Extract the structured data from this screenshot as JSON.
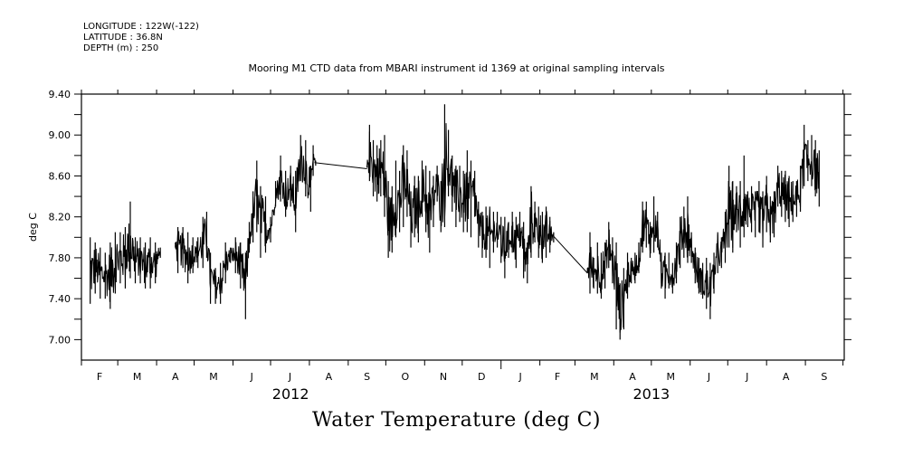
{
  "header": {
    "longitude": "LONGITUDE : 122W(-122)",
    "latitude": "LATITUDE : 36.8N",
    "depth": "DEPTH (m) : 250",
    "plot_title": "Mooring M1 CTD data from MBARI instrument id 1369 at original sampling intervals",
    "variable_title": "Water Temperature (deg C)"
  },
  "chart_data": {
    "type": "line",
    "title": "Mooring M1 CTD data from MBARI instrument id 1369 at original sampling intervals",
    "subtitle": "Water Temperature (deg C)",
    "xlabel": "",
    "ylabel": "deg C",
    "ylim": [
      6.8,
      9.4
    ],
    "yticks": [
      "7.00",
      "7.40",
      "7.80",
      "8.20",
      "8.60",
      "9.00",
      "9.40"
    ],
    "ytick_values": [
      7.0,
      7.4,
      7.8,
      8.2,
      8.6,
      9.0,
      9.4
    ],
    "yminor_step": 0.2,
    "xlim_days": [
      0,
      609
    ],
    "x_origin": "2012-02-01",
    "x_unit": "days since 2012-02-01",
    "month_ticks_days": [
      0,
      29,
      60,
      90,
      121,
      151,
      182,
      213,
      243,
      274,
      304,
      335,
      366,
      394,
      425,
      455,
      486,
      516,
      547,
      578,
      608
    ],
    "month_labels": [
      "F",
      "M",
      "A",
      "M",
      "J",
      "J",
      "A",
      "S",
      "O",
      "N",
      "D",
      "J",
      "F",
      "M",
      "A",
      "M",
      "J",
      "J",
      "A",
      "S"
    ],
    "year_labels": [
      {
        "label": "2012",
        "at_day": 167
      },
      {
        "label": "2013",
        "at_day": 455
      }
    ],
    "year_boundary_day": 335,
    "grid": false,
    "legend": "none",
    "series": [
      {
        "name": "Water Temperature",
        "segments": [
          {
            "points": [
              [
                7,
                7.35,
                8.0
              ],
              [
                11,
                7.45,
                7.95
              ],
              [
                15,
                7.4,
                7.9
              ],
              [
                19,
                7.4,
                7.85
              ],
              [
                23,
                7.3,
                7.95
              ],
              [
                27,
                7.45,
                8.05
              ],
              [
                31,
                7.55,
                8.05
              ],
              [
                35,
                7.5,
                8.1
              ],
              [
                39,
                7.6,
                8.35
              ],
              [
                43,
                7.55,
                8.0
              ],
              [
                47,
                7.55,
                8.0
              ],
              [
                51,
                7.5,
                7.95
              ],
              [
                55,
                7.5,
                8.0
              ],
              [
                59,
                7.55,
                7.95
              ],
              [
                63,
                7.8,
                7.9
              ]
            ]
          },
          {
            "points": [
              [
                75,
                7.9,
                7.95
              ],
              [
                77,
                7.65,
                8.1
              ],
              [
                81,
                7.7,
                8.1
              ],
              [
                85,
                7.55,
                8.05
              ],
              [
                89,
                7.65,
                8.0
              ],
              [
                93,
                7.7,
                8.0
              ],
              [
                97,
                7.7,
                8.2
              ],
              [
                100,
                7.8,
                8.25
              ],
              [
                103,
                7.35,
                7.85
              ],
              [
                107,
                7.35,
                7.7
              ],
              [
                111,
                7.35,
                7.75
              ],
              [
                115,
                7.55,
                7.95
              ],
              [
                119,
                7.75,
                7.9
              ],
              [
                123,
                7.65,
                8.0
              ],
              [
                127,
                7.5,
                7.95
              ],
              [
                131,
                7.2,
                7.85
              ],
              [
                134,
                7.85,
                8.15
              ],
              [
                137,
                7.95,
                8.45
              ],
              [
                140,
                8.05,
                8.75
              ],
              [
                143,
                7.8,
                8.5
              ],
              [
                147,
                7.85,
                8.4
              ],
              [
                151,
                7.95,
                8.2
              ],
              [
                155,
                8.3,
                8.55
              ],
              [
                159,
                8.35,
                8.8
              ],
              [
                163,
                8.2,
                8.65
              ],
              [
                167,
                8.3,
                8.7
              ],
              [
                171,
                8.05,
                8.65
              ],
              [
                175,
                8.55,
                9.0
              ],
              [
                179,
                8.4,
                8.95
              ],
              [
                183,
                8.25,
                8.7
              ],
              [
                185,
                8.6,
                8.9
              ],
              [
                187,
                8.7,
                8.75
              ]
            ]
          },
          {
            "points": [
              [
                186,
                8.72,
                8.74
              ],
              [
                228,
                8.66,
                8.68
              ]
            ]
          },
          {
            "points": [
              [
                228,
                8.68,
                8.7
              ],
              [
                230,
                8.55,
                9.1
              ],
              [
                233,
                8.4,
                8.95
              ],
              [
                236,
                8.35,
                8.9
              ],
              [
                239,
                8.4,
                8.95
              ],
              [
                242,
                8.2,
                9.0
              ],
              [
                245,
                7.8,
                8.55
              ],
              [
                248,
                7.85,
                8.5
              ],
              [
                251,
                8.0,
                8.75
              ],
              [
                254,
                8.05,
                8.65
              ],
              [
                257,
                8.1,
                8.9
              ],
              [
                260,
                8.2,
                8.85
              ],
              [
                263,
                7.9,
                8.45
              ],
              [
                266,
                8.0,
                8.6
              ],
              [
                269,
                7.95,
                8.6
              ],
              [
                272,
                8.2,
                8.75
              ],
              [
                275,
                8.05,
                8.7
              ],
              [
                278,
                7.85,
                8.65
              ],
              [
                281,
                8.1,
                8.6
              ],
              [
                284,
                8.35,
                8.7
              ],
              [
                287,
                8.05,
                8.55
              ],
              [
                290,
                8.1,
                9.3
              ],
              [
                293,
                8.4,
                9.05
              ],
              [
                296,
                8.25,
                8.8
              ],
              [
                299,
                8.1,
                8.7
              ],
              [
                302,
                8.15,
                8.7
              ],
              [
                305,
                8.05,
                8.65
              ],
              [
                308,
                8.05,
                8.85
              ],
              [
                311,
                8.0,
                8.75
              ],
              [
                314,
                8.2,
                8.65
              ],
              [
                317,
                7.9,
                8.35
              ],
              [
                320,
                7.8,
                8.25
              ],
              [
                323,
                7.8,
                8.3
              ],
              [
                326,
                7.7,
                8.3
              ],
              [
                329,
                7.85,
                8.25
              ],
              [
                332,
                7.9,
                8.25
              ],
              [
                335,
                7.75,
                8.2
              ],
              [
                338,
                7.6,
                8.2
              ],
              [
                341,
                7.8,
                8.15
              ],
              [
                344,
                7.85,
                8.25
              ],
              [
                347,
                7.7,
                8.2
              ],
              [
                350,
                7.9,
                8.25
              ],
              [
                353,
                7.6,
                8.15
              ],
              [
                356,
                7.55,
                7.95
              ],
              [
                359,
                7.8,
                8.5
              ],
              [
                362,
                7.95,
                8.35
              ],
              [
                365,
                7.8,
                8.3
              ],
              [
                368,
                7.75,
                8.25
              ],
              [
                371,
                7.8,
                8.3
              ],
              [
                374,
                7.85,
                8.2
              ],
              [
                377,
                7.95,
                8.05
              ]
            ]
          },
          {
            "points": [
              [
                377,
                8.0,
                8.02
              ],
              [
                404,
                7.64,
                7.66
              ]
            ]
          },
          {
            "points": [
              [
                404,
                7.65,
                7.7
              ],
              [
                406,
                7.45,
                8.05
              ],
              [
                409,
                7.5,
                7.8
              ],
              [
                412,
                7.45,
                7.95
              ],
              [
                415,
                7.4,
                7.85
              ],
              [
                418,
                7.5,
                7.95
              ],
              [
                421,
                7.7,
                8.15
              ],
              [
                424,
                7.55,
                8.0
              ],
              [
                427,
                7.1,
                7.95
              ],
              [
                430,
                7.0,
                7.55
              ],
              [
                433,
                7.1,
                7.7
              ],
              [
                436,
                7.4,
                7.85
              ],
              [
                439,
                7.55,
                7.8
              ],
              [
                442,
                7.55,
                7.85
              ],
              [
                445,
                7.65,
                7.95
              ],
              [
                448,
                7.85,
                8.35
              ],
              [
                451,
                7.9,
                8.35
              ],
              [
                454,
                7.8,
                8.15
              ],
              [
                457,
                7.85,
                8.4
              ],
              [
                460,
                7.9,
                8.25
              ],
              [
                463,
                7.5,
                7.85
              ],
              [
                466,
                7.4,
                7.85
              ],
              [
                469,
                7.5,
                7.85
              ],
              [
                472,
                7.45,
                7.75
              ],
              [
                475,
                7.55,
                7.95
              ],
              [
                478,
                7.7,
                8.2
              ],
              [
                481,
                7.8,
                8.3
              ],
              [
                484,
                7.75,
                8.4
              ],
              [
                487,
                7.75,
                8.05
              ],
              [
                490,
                7.55,
                7.9
              ],
              [
                493,
                7.45,
                7.8
              ],
              [
                496,
                7.4,
                7.75
              ],
              [
                499,
                7.3,
                7.8
              ],
              [
                502,
                7.2,
                7.75
              ],
              [
                505,
                7.45,
                7.85
              ],
              [
                508,
                7.65,
                8.05
              ],
              [
                511,
                7.7,
                8.0
              ],
              [
                514,
                7.75,
                8.25
              ],
              [
                517,
                7.9,
                8.7
              ],
              [
                520,
                7.85,
                8.55
              ],
              [
                523,
                8.05,
                8.5
              ],
              [
                526,
                7.9,
                8.55
              ],
              [
                529,
                8.0,
                8.8
              ],
              [
                532,
                8.1,
                8.45
              ],
              [
                535,
                8.05,
                8.5
              ],
              [
                538,
                8.0,
                8.45
              ],
              [
                541,
                8.05,
                8.55
              ],
              [
                544,
                7.9,
                8.45
              ],
              [
                547,
                8.05,
                8.6
              ],
              [
                550,
                7.95,
                8.4
              ],
              [
                553,
                8.0,
                8.45
              ],
              [
                556,
                8.3,
                8.7
              ],
              [
                559,
                8.2,
                8.65
              ],
              [
                562,
                8.15,
                8.65
              ],
              [
                565,
                8.1,
                8.6
              ],
              [
                568,
                8.15,
                8.55
              ],
              [
                571,
                8.2,
                8.55
              ],
              [
                574,
                8.25,
                8.7
              ],
              [
                577,
                8.5,
                9.1
              ],
              [
                580,
                8.55,
                8.95
              ],
              [
                583,
                8.5,
                9.0
              ],
              [
                586,
                8.4,
                8.95
              ],
              [
                589,
                8.3,
                8.85
              ]
            ]
          }
        ]
      }
    ]
  }
}
